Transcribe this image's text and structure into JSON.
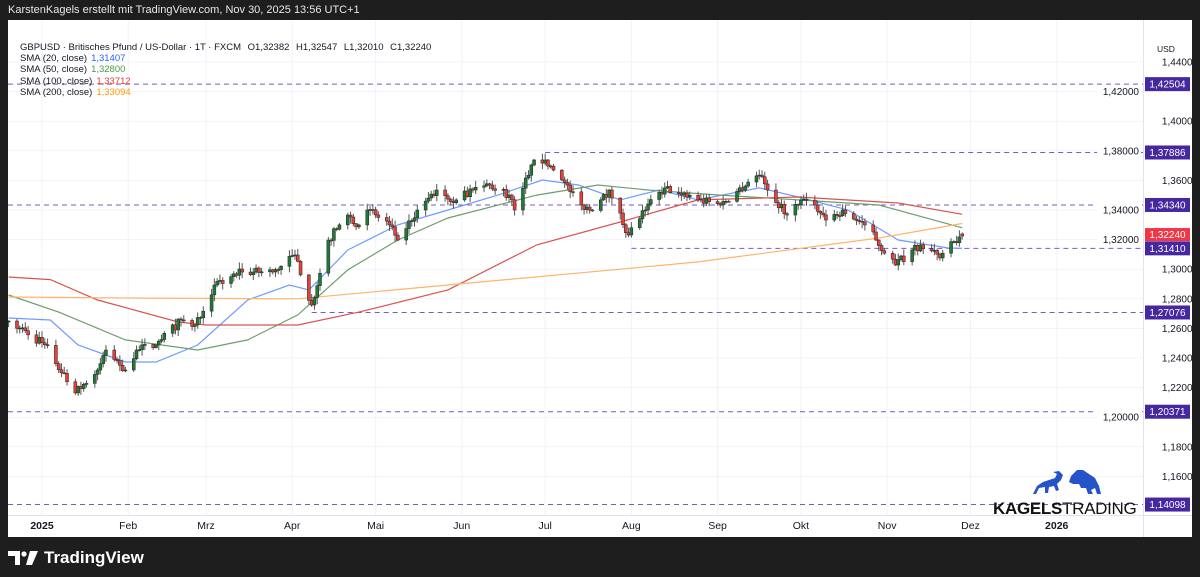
{
  "topbar": {
    "text": "KarstenKagels erstellt mit TradingView.com, Nov 30, 2025 13:56 UTC+1"
  },
  "legend": {
    "symbol_line": "GBPUSD · Britisches Pfund / US-Dollar · 1T · FXCM",
    "ohlc": {
      "O": "O1,32382",
      "H": "H1,32547",
      "L": "L1,32010",
      "C": "C1,32240"
    },
    "indicators": [
      {
        "label": "SMA (20, close)",
        "value": "1,31407",
        "color": "#2962ff"
      },
      {
        "label": "SMA (50, close)",
        "value": "1,32800",
        "color": "#43a047"
      },
      {
        "label": "SMA (100, close)",
        "value": "1,33712",
        "color": "#e53935"
      },
      {
        "label": "SMA (200, close)",
        "value": "1,33094",
        "color": "#ff9800"
      }
    ]
  },
  "price_axis": {
    "currency": "USD"
  },
  "branding": {
    "tradingview": "TradingView",
    "logo_text_bold": "KAGELS",
    "logo_text_light": "TRADING",
    "logo_color": "#2553c8"
  },
  "chart_data": {
    "type": "candlestick",
    "symbol": "GBPUSD",
    "interval": "1T",
    "ylim": [
      1.13,
      1.46
    ],
    "y_ticks": [
      "1,16000",
      "1,18000",
      "1,20000",
      "1,22000",
      "1,24000",
      "1,26000",
      "1,28000",
      "1,30000",
      "1,32000",
      "1,34000",
      "1,36000",
      "1,38000",
      "1,40000",
      "1,42000",
      "1,44000"
    ],
    "x_ticks": [
      {
        "label": "2025",
        "date": "2025-01-01",
        "bold": true
      },
      {
        "label": "Feb",
        "date": "2025-02-01"
      },
      {
        "label": "Mrz",
        "date": "2025-03-01"
      },
      {
        "label": "Apr",
        "date": "2025-04-01"
      },
      {
        "label": "Mai",
        "date": "2025-05-01"
      },
      {
        "label": "Jun",
        "date": "2025-06-01"
      },
      {
        "label": "Jul",
        "date": "2025-07-01"
      },
      {
        "label": "Aug",
        "date": "2025-08-01"
      },
      {
        "label": "Sep",
        "date": "2025-09-01"
      },
      {
        "label": "Okt",
        "date": "2025-10-01"
      },
      {
        "label": "Nov",
        "date": "2025-11-01"
      },
      {
        "label": "Dez",
        "date": "2025-12-01"
      },
      {
        "label": "2026",
        "date": "2026-01-01",
        "bold": true
      }
    ],
    "last_price": {
      "value": 1.3224,
      "label": "1,32240",
      "color": "#f23645"
    },
    "levels": [
      {
        "value": 1.42504,
        "label": "1,42504",
        "from": null
      },
      {
        "value": 1.37886,
        "label": "1,37886",
        "from": "2025-07-01"
      },
      {
        "value": 1.3434,
        "label": "1,34340",
        "from": null
      },
      {
        "value": 1.3141,
        "label": "1,31410",
        "from": "2025-08-01"
      },
      {
        "value": 1.27076,
        "label": "1,27076",
        "from": "2025-04-08"
      },
      {
        "value": 1.20371,
        "label": "1,20371",
        "from": null
      },
      {
        "value": 1.14098,
        "label": "1,14098",
        "from": null
      }
    ],
    "level_color": "#4527a0",
    "close_path": [
      [
        "2024-12-20",
        1.265
      ],
      [
        "2025-01-02",
        1.249
      ],
      [
        "2025-01-13",
        1.2164
      ],
      [
        "2025-01-21",
        1.2319
      ],
      [
        "2025-01-24",
        1.2454
      ],
      [
        "2025-01-31",
        1.2319
      ],
      [
        "2025-02-04",
        1.2454
      ],
      [
        "2025-02-11",
        1.2488
      ],
      [
        "2025-02-20",
        1.2657
      ],
      [
        "2025-02-25",
        1.2623
      ],
      [
        "2025-03-04",
        1.2893
      ],
      [
        "2025-03-14",
        1.2981
      ],
      [
        "2025-03-25",
        1.2981
      ],
      [
        "2025-04-02",
        1.3096
      ],
      [
        "2025-04-08",
        1.2758
      ],
      [
        "2025-04-14",
        1.3197
      ],
      [
        "2025-04-21",
        1.3366
      ],
      [
        "2025-04-25",
        1.3299
      ],
      [
        "2025-04-28",
        1.34
      ],
      [
        "2025-05-06",
        1.3299
      ],
      [
        "2025-05-09",
        1.3197
      ],
      [
        "2025-05-16",
        1.34
      ],
      [
        "2025-05-23",
        1.3535
      ],
      [
        "2025-05-30",
        1.3468
      ],
      [
        "2025-06-05",
        1.3535
      ],
      [
        "2025-06-11",
        1.3569
      ],
      [
        "2025-06-18",
        1.3501
      ],
      [
        "2025-06-20",
        1.34
      ],
      [
        "2025-06-26",
        1.3704
      ],
      [
        "2025-07-01",
        1.3738
      ],
      [
        "2025-07-07",
        1.3603
      ],
      [
        "2025-07-14",
        1.3434
      ],
      [
        "2025-07-17",
        1.34
      ],
      [
        "2025-07-24",
        1.3535
      ],
      [
        "2025-07-31",
        1.3231
      ],
      [
        "2025-08-06",
        1.34
      ],
      [
        "2025-08-13",
        1.3549
      ],
      [
        "2025-08-19",
        1.3501
      ],
      [
        "2025-08-25",
        1.3468
      ],
      [
        "2025-09-02",
        1.3434
      ],
      [
        "2025-09-12",
        1.3589
      ],
      [
        "2025-09-16",
        1.3636
      ],
      [
        "2025-09-19",
        1.3535
      ],
      [
        "2025-09-26",
        1.3366
      ],
      [
        "2025-10-01",
        1.3468
      ],
      [
        "2025-10-06",
        1.3434
      ],
      [
        "2025-10-10",
        1.3332
      ],
      [
        "2025-10-16",
        1.34
      ],
      [
        "2025-10-24",
        1.3299
      ],
      [
        "2025-10-28",
        1.3197
      ],
      [
        "2025-11-04",
        1.3028
      ],
      [
        "2025-11-10",
        1.313
      ],
      [
        "2025-11-13",
        1.3164
      ],
      [
        "2025-11-20",
        1.3076
      ],
      [
        "2025-11-27",
        1.3218
      ],
      [
        "2025-11-28",
        1.3224
      ]
    ],
    "sma": [
      {
        "name": "SMA (20, close)",
        "color": "#6f9bff",
        "points": [
          [
            "2024-12-20",
            1.267
          ],
          [
            "2025-01-04",
            1.2657
          ],
          [
            "2025-01-14",
            1.2488
          ],
          [
            "2025-01-31",
            1.2373
          ],
          [
            "2025-02-11",
            1.2373
          ],
          [
            "2025-02-26",
            1.2488
          ],
          [
            "2025-03-16",
            1.2792
          ],
          [
            "2025-03-31",
            1.2893
          ],
          [
            "2025-04-07",
            1.286
          ],
          [
            "2025-04-21",
            1.313
          ],
          [
            "2025-05-09",
            1.3299
          ],
          [
            "2025-05-27",
            1.34
          ],
          [
            "2025-06-14",
            1.3501
          ],
          [
            "2025-06-30",
            1.3603
          ],
          [
            "2025-07-13",
            1.3569
          ],
          [
            "2025-07-28",
            1.3468
          ],
          [
            "2025-08-11",
            1.3535
          ],
          [
            "2025-08-25",
            1.3468
          ],
          [
            "2025-09-16",
            1.3549
          ],
          [
            "2025-09-30",
            1.3488
          ],
          [
            "2025-10-18",
            1.34
          ],
          [
            "2025-11-05",
            1.3197
          ],
          [
            "2025-11-23",
            1.3143
          ],
          [
            "2025-11-28",
            1.3141
          ]
        ]
      },
      {
        "name": "SMA (50, close)",
        "color": "#6e9e6e",
        "points": [
          [
            "2024-12-20",
            1.2826
          ],
          [
            "2025-01-07",
            1.271
          ],
          [
            "2025-01-31",
            1.2522
          ],
          [
            "2025-02-26",
            1.2454
          ],
          [
            "2025-03-16",
            1.2522
          ],
          [
            "2025-04-03",
            1.2691
          ],
          [
            "2025-04-21",
            1.2995
          ],
          [
            "2025-05-09",
            1.3197
          ],
          [
            "2025-05-27",
            1.3346
          ],
          [
            "2025-06-28",
            1.3501
          ],
          [
            "2025-07-20",
            1.3569
          ],
          [
            "2025-08-07",
            1.3535
          ],
          [
            "2025-09-02",
            1.3501
          ],
          [
            "2025-09-30",
            1.3468
          ],
          [
            "2025-10-29",
            1.3434
          ],
          [
            "2025-11-28",
            1.328
          ]
        ]
      },
      {
        "name": "SMA (100, close)",
        "color": "#d9534f",
        "points": [
          [
            "2024-12-20",
            1.2947
          ],
          [
            "2025-01-04",
            1.293
          ],
          [
            "2025-01-21",
            1.2792
          ],
          [
            "2025-02-19",
            1.2643
          ],
          [
            "2025-03-01",
            1.2623
          ],
          [
            "2025-04-03",
            1.2623
          ],
          [
            "2025-04-25",
            1.271
          ],
          [
            "2025-05-27",
            1.286
          ],
          [
            "2025-06-28",
            1.3164
          ],
          [
            "2025-07-28",
            1.3319
          ],
          [
            "2025-08-25",
            1.3468
          ],
          [
            "2025-09-30",
            1.3488
          ],
          [
            "2025-11-05",
            1.3447
          ],
          [
            "2025-11-28",
            1.3371
          ]
        ]
      },
      {
        "name": "SMA (200, close)",
        "color": "#ffb36b",
        "points": [
          [
            "2024-12-20",
            1.2812
          ],
          [
            "2025-02-08",
            1.2805
          ],
          [
            "2025-04-03",
            1.28
          ],
          [
            "2025-05-27",
            1.2893
          ],
          [
            "2025-07-28",
            1.3
          ],
          [
            "2025-08-25",
            1.3049
          ],
          [
            "2025-10-29",
            1.3211
          ],
          [
            "2025-11-28",
            1.3309
          ]
        ]
      }
    ],
    "up_color": "#1f7a35",
    "down_color": "#e5403a",
    "grid": true
  }
}
